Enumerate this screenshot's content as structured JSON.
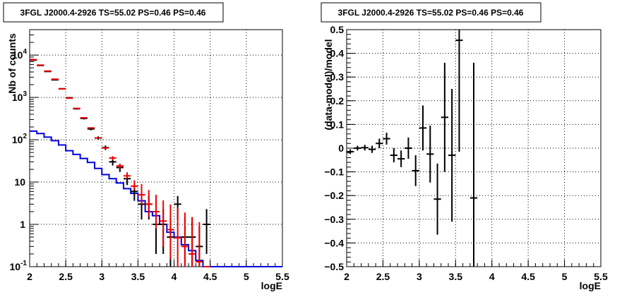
{
  "chart_data": [
    {
      "type": "line",
      "title": "3FGL J2000.4-2926 TS=55.02 PS=0.46 PS=0.46",
      "xlabel": "logE",
      "ylabel": "Nb of counts",
      "xlim": [
        2,
        5.5
      ],
      "ylim": [
        0.1,
        40000
      ],
      "yscale": "log",
      "grid": true,
      "xticks": [
        "2",
        "2.5",
        "3",
        "3.5",
        "4",
        "4.5",
        "5",
        "5.5"
      ],
      "yticks": [
        {
          "value": 0.1,
          "base": "10",
          "exp": "-1"
        },
        {
          "value": 1,
          "base": "1",
          "exp": ""
        },
        {
          "value": 10,
          "base": "10",
          "exp": ""
        },
        {
          "value": 100,
          "base": "10",
          "exp": "2"
        },
        {
          "value": 1000,
          "base": "10",
          "exp": "3"
        },
        {
          "value": 10000,
          "base": "10",
          "exp": "4"
        }
      ],
      "colors": {
        "data": "#000000",
        "model": "#ee0000",
        "background": "#0000dd"
      },
      "series": [
        {
          "key": "data",
          "x": [
            2.05,
            2.15,
            2.25,
            2.35,
            2.45,
            2.55,
            2.65,
            2.75,
            2.85,
            2.95,
            3.05,
            3.15,
            3.25,
            3.35,
            3.45,
            3.55,
            3.65,
            3.75,
            3.85,
            3.95,
            4.05,
            4.15,
            4.25,
            4.35,
            4.45
          ],
          "y": [
            7600,
            5700,
            4100,
            2600,
            1600,
            980,
            540,
            320,
            180,
            110,
            65,
            30,
            22,
            12,
            6,
            3,
            3,
            1,
            1,
            0.5,
            3,
            0.5,
            0.5,
            0.3,
            1
          ],
          "yerr_low": [
            80,
            70,
            60,
            50,
            40,
            30,
            23,
            18,
            13,
            10,
            8,
            5.5,
            4.7,
            3.5,
            2.4,
            1.7,
            1.7,
            0.8,
            0.8,
            0.45,
            1.7,
            0.45,
            0.45,
            0.29,
            0.8
          ],
          "yerr_high": [
            80,
            70,
            60,
            50,
            40,
            30,
            23,
            18,
            13,
            10,
            8,
            5.5,
            4.7,
            3.5,
            2.4,
            1.7,
            1.7,
            1.3,
            1.3,
            0.9,
            1.7,
            0.9,
            0.9,
            0.6,
            1.3
          ]
        },
        {
          "key": "model",
          "x": [
            2.05,
            2.15,
            2.25,
            2.35,
            2.45,
            2.55,
            2.65,
            2.75,
            2.85,
            2.95,
            3.05,
            3.15,
            3.25,
            3.35,
            3.45,
            3.55,
            3.65,
            3.75,
            3.85,
            3.95,
            4.05,
            4.15,
            4.25,
            4.35,
            4.45
          ],
          "y": [
            7800,
            5800,
            4200,
            2700,
            1600,
            960,
            550,
            330,
            190,
            110,
            64,
            37,
            24,
            14,
            8,
            5,
            3,
            2,
            1.2,
            0.75,
            0.48,
            0.3,
            0.2,
            0.13,
            0.09
          ],
          "yerr_low": [
            0,
            0,
            0,
            0,
            0,
            0,
            0,
            0,
            0,
            0,
            0,
            4,
            3,
            2,
            1.5,
            2,
            1.5,
            1.2,
            0.9,
            0.6,
            0.4,
            0.28,
            0.19,
            0.125,
            0
          ],
          "yerr_high": [
            0,
            0,
            0,
            0,
            0,
            0,
            0,
            0,
            0,
            0,
            0,
            4,
            3,
            3,
            3,
            4,
            3.5,
            3,
            2.5,
            2.2,
            2,
            1.6,
            1.3,
            1,
            0
          ]
        },
        {
          "key": "background",
          "x": [
            2.0,
            2.1,
            2.2,
            2.3,
            2.4,
            2.5,
            2.6,
            2.7,
            2.8,
            2.9,
            3.0,
            3.1,
            3.2,
            3.3,
            3.4,
            3.5,
            3.6,
            3.7,
            3.8,
            3.9,
            4.0,
            4.1,
            4.2,
            4.3,
            4.4,
            4.5,
            5.5
          ],
          "y": [
            160,
            140,
            115,
            95,
            75,
            55,
            45,
            36,
            29,
            21,
            15,
            12,
            9.5,
            7,
            5.4,
            3.6,
            2.0,
            1.6,
            1.0,
            0.65,
            0.5,
            0.33,
            0.24,
            0.14,
            0.1,
            0.1,
            0.1
          ]
        }
      ]
    },
    {
      "type": "scatter",
      "title": "3FGL J2000.4-2926 TS=55.02 PS=0.46 PS=0.46",
      "xlabel": "logE",
      "ylabel": "(data-model)/model",
      "xlim": [
        2,
        5.5
      ],
      "ylim": [
        -0.5,
        0.5
      ],
      "grid": true,
      "xticks": [
        "2",
        "2.5",
        "3",
        "3.5",
        "4",
        "4.5",
        "5",
        "5.5"
      ],
      "yticks": [
        "-0.5",
        "-0.4",
        "-0.3",
        "-0.2",
        "-0.1",
        "0",
        "0.1",
        "0.2",
        "0.3",
        "0.4",
        "0.5"
      ],
      "series": [
        {
          "key": "residual",
          "x": [
            2.05,
            2.15,
            2.25,
            2.35,
            2.45,
            2.55,
            2.65,
            2.75,
            2.85,
            2.95,
            3.05,
            3.15,
            3.25,
            3.35,
            3.45,
            3.55,
            3.75
          ],
          "y": [
            -0.015,
            0.0,
            0.002,
            -0.005,
            0.02,
            0.04,
            -0.03,
            -0.045,
            0.0,
            -0.095,
            0.085,
            -0.025,
            -0.215,
            0.13,
            -0.03,
            0.455,
            -0.21
          ],
          "yerr": [
            0.01,
            0.01,
            0.012,
            0.015,
            0.02,
            0.025,
            0.03,
            0.035,
            0.045,
            0.065,
            0.095,
            0.12,
            0.15,
            0.23,
            0.28,
            0.47,
            0.57
          ]
        }
      ]
    }
  ]
}
